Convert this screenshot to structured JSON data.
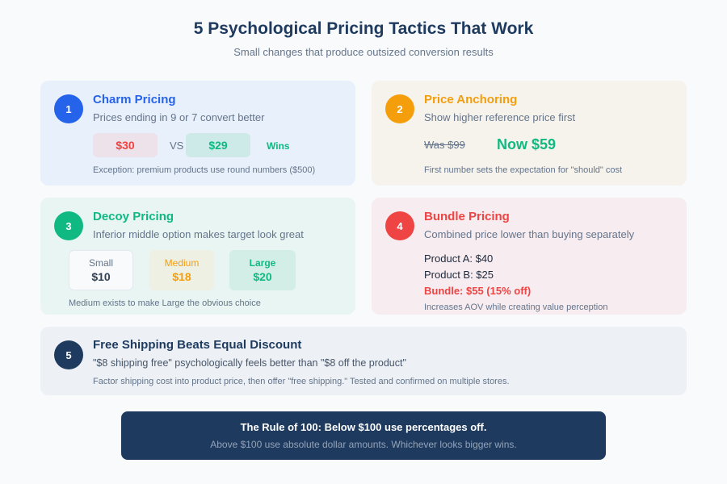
{
  "header": {
    "title": "5 Psychological Pricing Tactics That Work",
    "subtitle": "Small changes that produce outsized conversion results"
  },
  "colors": {
    "blue": "#2563eb",
    "amber": "#f59e0b",
    "green": "#10b981",
    "red": "#ef4444",
    "navy": "#1e3a5f"
  },
  "tactics": [
    {
      "number": "1",
      "title": "Charm Pricing",
      "subtitle": "Prices ending in 9 or 7 convert better",
      "lose_price": "$30",
      "vs": "VS",
      "win_price": "$29",
      "win_label": "Wins",
      "note": "Exception: premium products use round numbers ($500)"
    },
    {
      "number": "2",
      "title": "Price Anchoring",
      "subtitle": "Show higher reference price first",
      "was": "Was $99",
      "now": "Now $59",
      "note": "First number sets the expectation for \"should\" cost"
    },
    {
      "number": "3",
      "title": "Decoy Pricing",
      "subtitle": "Inferior middle option makes target look great",
      "options": [
        {
          "label": "Small",
          "price": "$10"
        },
        {
          "label": "Medium",
          "price": "$18"
        },
        {
          "label": "Large",
          "price": "$20"
        }
      ],
      "note": "Medium exists to make Large the obvious choice"
    },
    {
      "number": "4",
      "title": "Bundle Pricing",
      "subtitle": "Combined price lower than buying separately",
      "lines": [
        "Product A: $40",
        "Product B: $25"
      ],
      "bundle": "Bundle: $55 (15% off)",
      "note": "Increases AOV while creating value perception"
    },
    {
      "number": "5",
      "title": "Free Shipping Beats Equal Discount",
      "subtitle": "\"$8 shipping free\" psychologically feels better than \"$8 off the product\"",
      "note": "Factor shipping cost into product price, then offer \"free shipping.\" Tested and confirmed on multiple stores."
    }
  ],
  "rule": {
    "title": "The Rule of 100: Below $100 use percentages off.",
    "subtitle": "Above $100 use absolute dollar amounts. Whichever looks bigger wins."
  }
}
